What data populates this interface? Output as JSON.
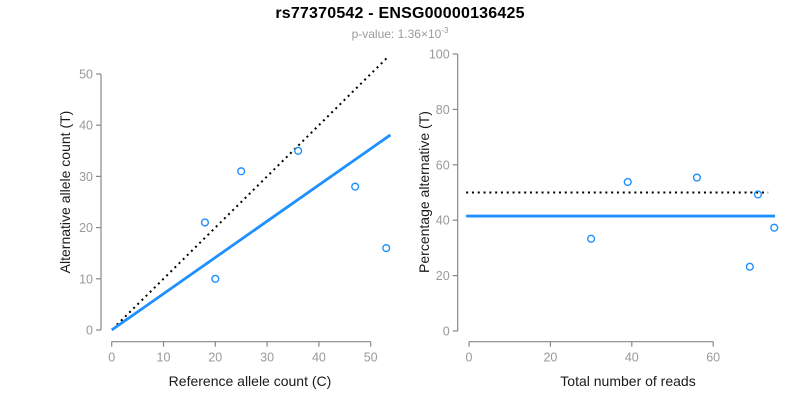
{
  "header": {
    "title": "rs77370542 - ENSG00000136425",
    "subtitle_prefix": "p-value: 1.36×10",
    "subtitle_exponent": "-3"
  },
  "colors": {
    "accent_blue": "#1E90FF",
    "line_black": "#000000",
    "axis_gray": "#888888",
    "tick_label_gray": "#999999",
    "axis_title_color": "#1a1a1a",
    "subtitle_gray": "#9a9a9a",
    "background": "#ffffff"
  },
  "chart_data": [
    {
      "type": "scatter",
      "name": "allele-counts-plot",
      "xlabel": "Reference allele count (C)",
      "ylabel": "Alternative allele count (T)",
      "xticks": [
        0,
        10,
        20,
        30,
        40,
        50
      ],
      "yticks": [
        0,
        10,
        20,
        30,
        40,
        50
      ],
      "xlim": [
        -2,
        55
      ],
      "ylim": [
        -2,
        55
      ],
      "grid": false,
      "legend": null,
      "points": [
        [
          18,
          21
        ],
        [
          20,
          10
        ],
        [
          25,
          31
        ],
        [
          36,
          35
        ],
        [
          47,
          28
        ],
        [
          53,
          16
        ]
      ],
      "lines": [
        {
          "name": "identity-line",
          "style": "dotted",
          "color_key": "line_black",
          "x1": 1,
          "y1": 1,
          "x2": 53.5,
          "y2": 53.5
        },
        {
          "name": "regression-fit-line",
          "style": "solid",
          "color_key": "accent_blue",
          "x1": 0,
          "y1": 0,
          "x2": 53.8,
          "y2": 38.1
        }
      ]
    },
    {
      "type": "scatter",
      "name": "percentage-alternative-plot",
      "xlabel": "Total number of reads",
      "ylabel": "Percentage alternative (T)",
      "xticks": [
        0,
        20,
        40,
        60
      ],
      "yticks": [
        0,
        20,
        40,
        60,
        80,
        100
      ],
      "xlim": [
        -3,
        78
      ],
      "ylim": [
        -4,
        104
      ],
      "grid": false,
      "legend": null,
      "points": [
        [
          30,
          33.3
        ],
        [
          39,
          53.8
        ],
        [
          56,
          55.4
        ],
        [
          69,
          23.2
        ],
        [
          71,
          49.3
        ],
        [
          75,
          37.3
        ]
      ],
      "lines": [
        {
          "name": "expected-50pct-line",
          "style": "dotted",
          "color_key": "line_black",
          "x1": -0.7,
          "y1": 50,
          "x2": 73.5,
          "y2": 50
        },
        {
          "name": "mean-percentage-line",
          "style": "solid",
          "color_key": "accent_blue",
          "x1": -0.7,
          "y1": 41.5,
          "x2": 75.2,
          "y2": 41.5
        }
      ]
    }
  ]
}
